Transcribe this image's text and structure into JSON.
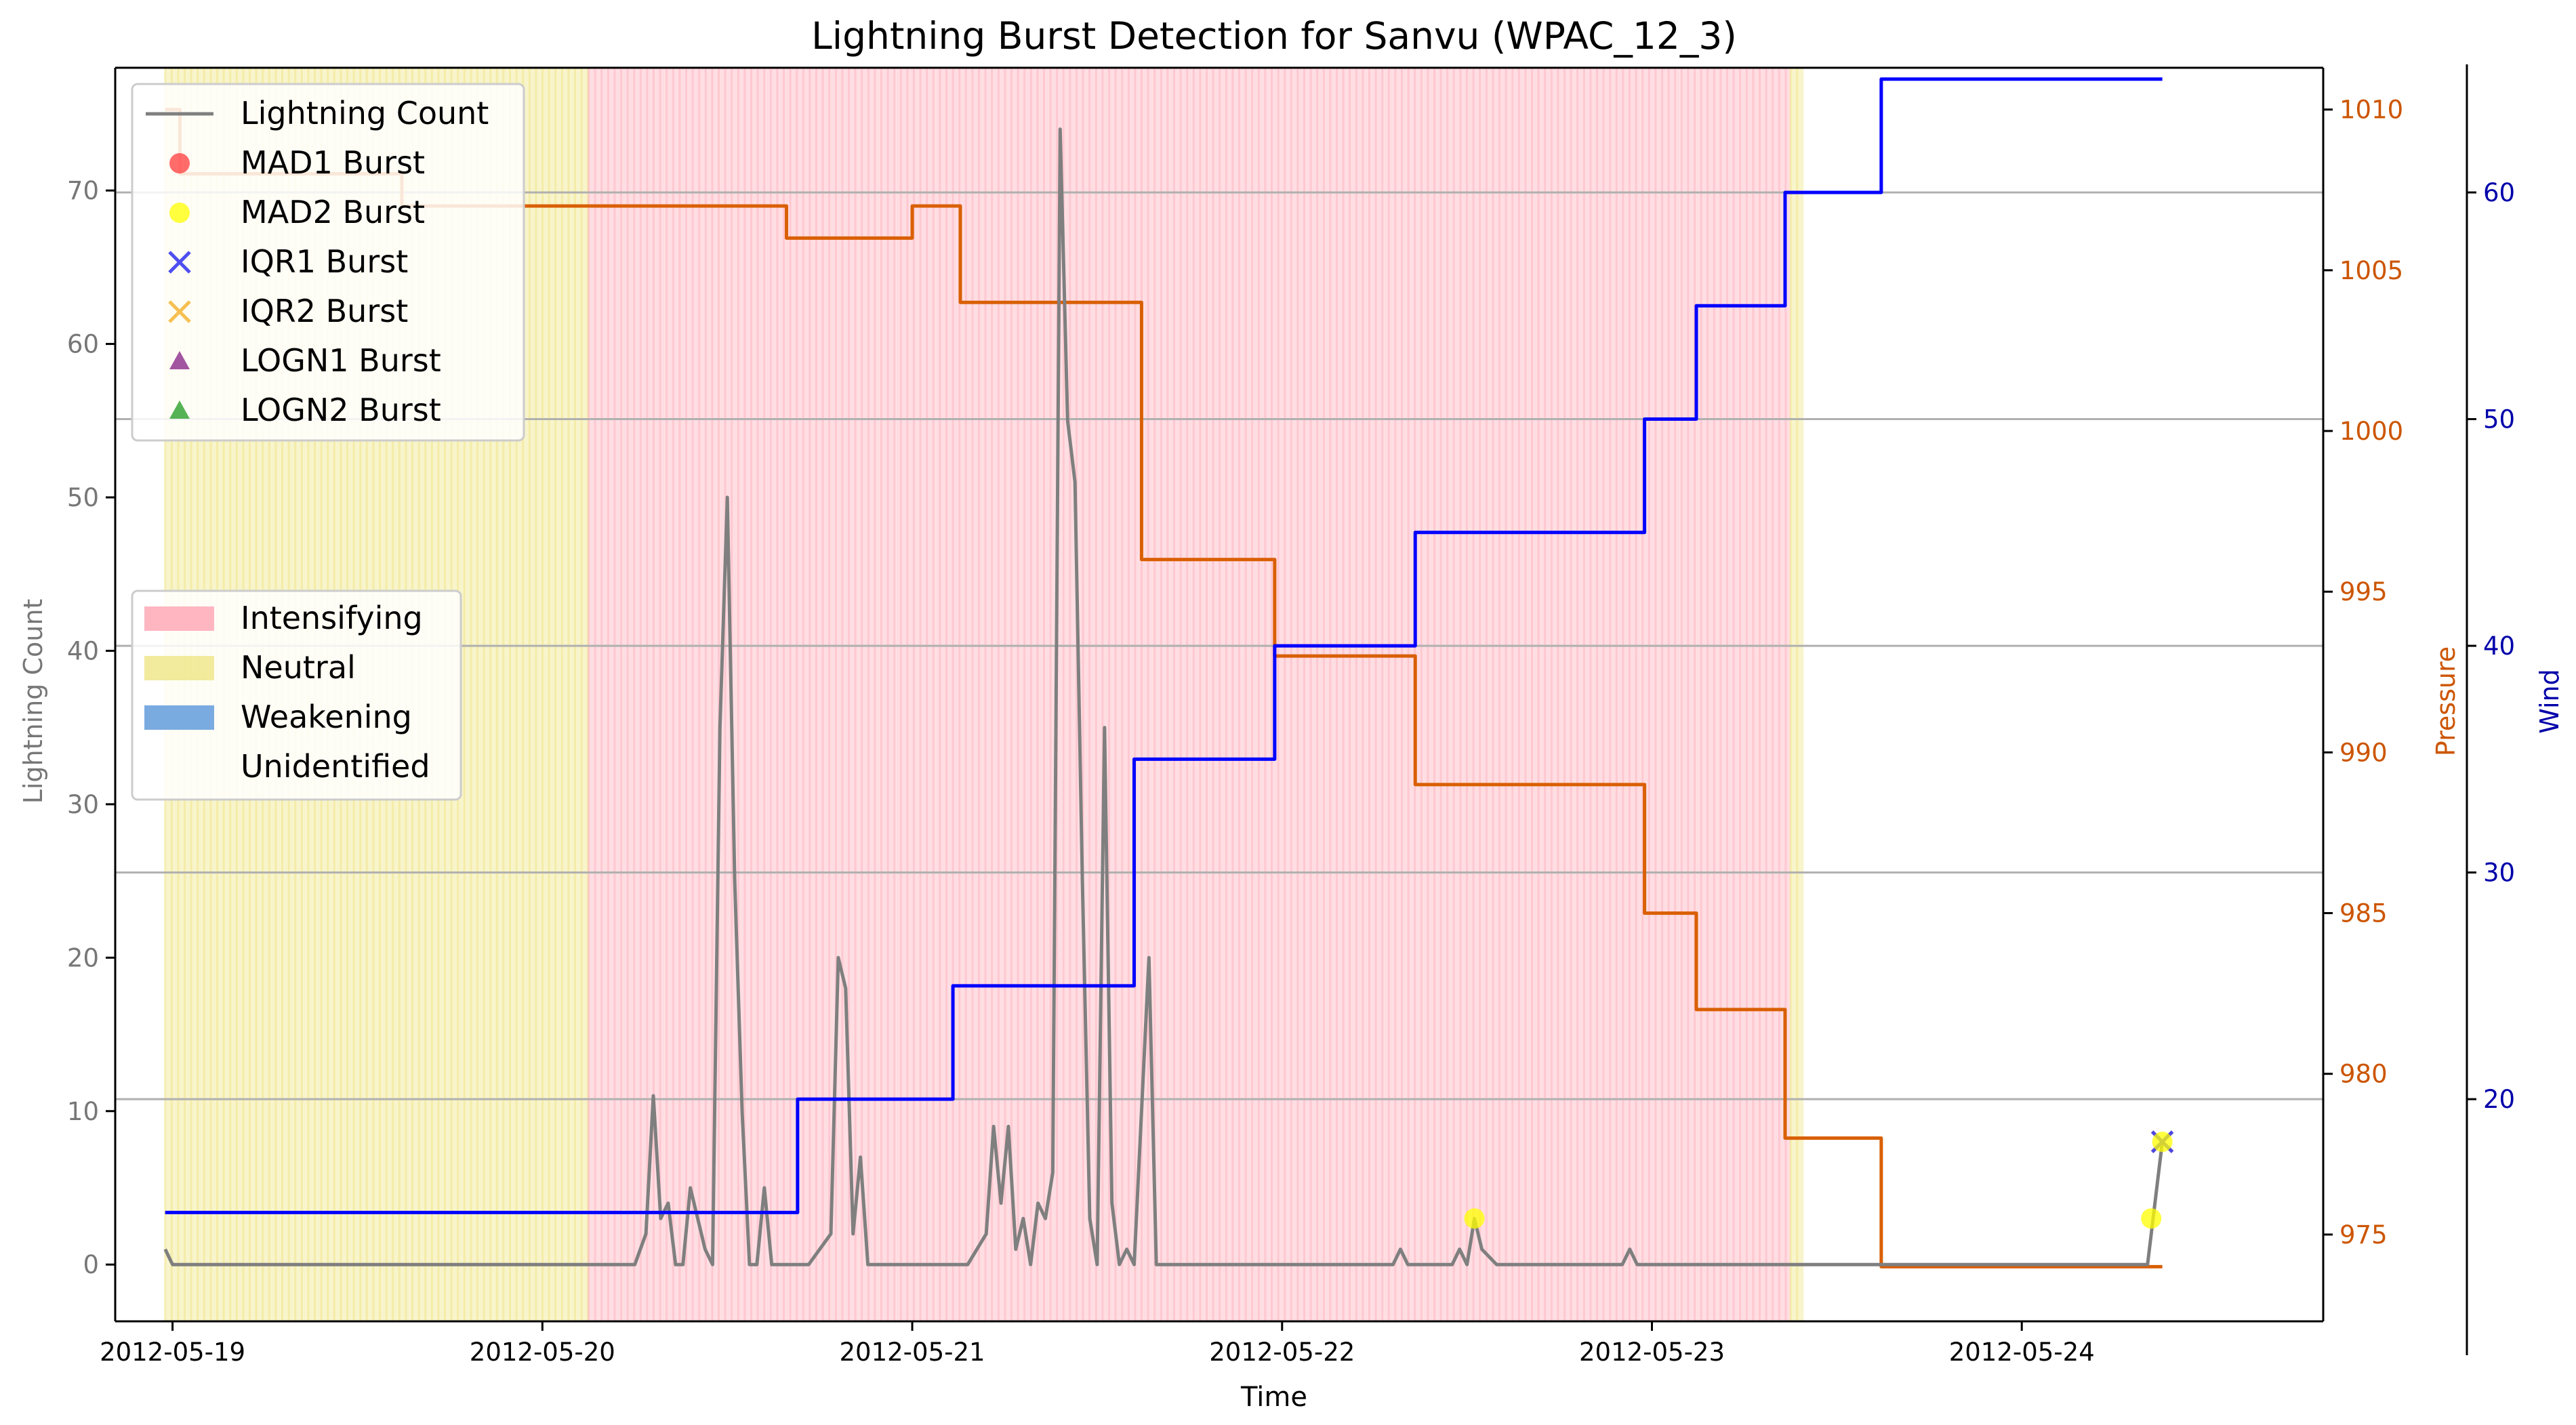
{
  "chart_data": {
    "type": "line",
    "title": "Lightning Burst Detection for Sanvu (WPAC_12_3)",
    "xlabel": "Time",
    "ylabel_left": "Lightning Count",
    "ylabel_pressure": "Pressure",
    "ylabel_wind": "Wind",
    "x_tick_labels": [
      "2012-05-19",
      "2012-05-20",
      "2012-05-21",
      "2012-05-22",
      "2012-05-23",
      "2012-05-24"
    ],
    "y_left_ticks": [
      0,
      10,
      20,
      30,
      40,
      50,
      60,
      70
    ],
    "y_pressure_ticks": [
      975,
      980,
      985,
      990,
      995,
      1000,
      1005,
      1010
    ],
    "y_wind_ticks": [
      20,
      30,
      40,
      50,
      60
    ],
    "ylim_left": [
      -3.7,
      78
    ],
    "ylim_pressure": [
      972.3,
      1011.3
    ],
    "ylim_wind": [
      10.2,
      65.5
    ],
    "xlim_days": [
      -0.155,
      5.815
    ],
    "grid": "horizontal lines on wind axis",
    "legend_markers_position": "top-left",
    "legend_phases_position": "center-left",
    "colors": {
      "lightning": "#7f7f7f",
      "pressure": "#d95f02",
      "wind": "#0000ff",
      "intensifying": "#ffb6c1",
      "neutral": "#f0e68c",
      "weakening": "#7aabe0",
      "mad1": "#ff3b3b",
      "mad2": "#ffff00",
      "iqr1": "#3b3bf0",
      "iqr2": "#f5b83d",
      "logn1": "#8b2a8b",
      "logn2": "#2ca02c",
      "tick_pressure": "#cc5500",
      "tick_wind": "#0000aa",
      "tick_left": "#777777"
    },
    "legend_markers": [
      {
        "key": "lightning",
        "label": "Lightning Count",
        "shape": "line"
      },
      {
        "key": "mad1",
        "label": "MAD1 Burst",
        "shape": "circle"
      },
      {
        "key": "mad2",
        "label": "MAD2 Burst",
        "shape": "circle"
      },
      {
        "key": "iqr1",
        "label": "IQR1 Burst",
        "shape": "x"
      },
      {
        "key": "iqr2",
        "label": "IQR2 Burst",
        "shape": "x"
      },
      {
        "key": "logn1",
        "label": "LOGN1 Burst",
        "shape": "triangle"
      },
      {
        "key": "logn2",
        "label": "LOGN2 Burst",
        "shape": "triangle"
      }
    ],
    "legend_phases": [
      {
        "key": "intensifying",
        "label": "Intensifying"
      },
      {
        "key": "neutral",
        "label": "Neutral"
      },
      {
        "key": "weakening",
        "label": "Weakening"
      },
      {
        "key": "unidentified",
        "label": "Unidentified"
      }
    ],
    "phases": [
      {
        "phase": "neutral",
        "start": -0.02,
        "end": 1.125
      },
      {
        "phase": "intensifying",
        "start": 1.125,
        "end": 4.375
      },
      {
        "phase": "neutral",
        "start": 4.375,
        "end": 4.41
      }
    ],
    "lightning": {
      "x": [
        -0.02,
        0,
        1.25,
        1.28,
        1.3,
        1.32,
        1.34,
        1.36,
        1.38,
        1.4,
        1.42,
        1.44,
        1.46,
        1.48,
        1.5,
        1.52,
        1.54,
        1.56,
        1.58,
        1.6,
        1.62,
        1.64,
        1.66,
        1.68,
        1.72,
        1.78,
        1.8,
        1.82,
        1.84,
        1.86,
        1.88,
        1.9,
        2.15,
        2.2,
        2.22,
        2.24,
        2.26,
        2.28,
        2.3,
        2.32,
        2.34,
        2.36,
        2.38,
        2.4,
        2.42,
        2.44,
        2.46,
        2.48,
        2.5,
        2.52,
        2.54,
        2.56,
        2.58,
        2.6,
        2.62,
        2.64,
        2.66,
        2.68,
        2.7,
        2.72,
        2.74,
        2.76,
        2.8,
        2.96,
        3.3,
        3.32,
        3.34,
        3.44,
        3.46,
        3.48,
        3.5,
        3.52,
        3.54,
        3.58,
        3.92,
        3.94,
        3.96,
        4.0,
        4.33,
        4.375,
        5.3,
        5.34,
        5.38
      ],
      "y": [
        1,
        0,
        0,
        2,
        11,
        3,
        4,
        0,
        0,
        5,
        3,
        1,
        0,
        35,
        50,
        25,
        10,
        0,
        0,
        5,
        0,
        0,
        0,
        0,
        0,
        2,
        20,
        18,
        2,
        7,
        0,
        0,
        0,
        2,
        9,
        4,
        9,
        1,
        3,
        0,
        4,
        3,
        6,
        74,
        55,
        51,
        25,
        3,
        0,
        35,
        4,
        0,
        1,
        0,
        10,
        20,
        0,
        0,
        0,
        0,
        0,
        0,
        0,
        0,
        0,
        1,
        0,
        0,
        0,
        1,
        0,
        3,
        1,
        0,
        0,
        1,
        0,
        0,
        0,
        0,
        0,
        0,
        8
      ]
    },
    "pressure_steps": [
      {
        "x": -0.02,
        "value": 1010
      },
      {
        "x": 0.02,
        "value": 1008
      },
      {
        "x": 0.62,
        "value": 1007
      },
      {
        "x": 1.66,
        "value": 1006
      },
      {
        "x": 2.0,
        "value": 1007
      },
      {
        "x": 2.13,
        "value": 1004
      },
      {
        "x": 2.62,
        "value": 996
      },
      {
        "x": 2.98,
        "value": 993
      },
      {
        "x": 3.36,
        "value": 989
      },
      {
        "x": 3.98,
        "value": 985
      },
      {
        "x": 4.12,
        "value": 982
      },
      {
        "x": 4.36,
        "value": 978
      },
      {
        "x": 4.62,
        "value": 974
      }
    ],
    "pressure_end_x": 5.38,
    "wind_steps": [
      {
        "x": -0.02,
        "value": 15
      },
      {
        "x": 1.69,
        "value": 20
      },
      {
        "x": 2.11,
        "value": 25
      },
      {
        "x": 2.6,
        "value": 35
      },
      {
        "x": 2.98,
        "value": 40
      },
      {
        "x": 3.36,
        "value": 45
      },
      {
        "x": 3.98,
        "value": 50
      },
      {
        "x": 4.12,
        "value": 55
      },
      {
        "x": 4.36,
        "value": 60
      },
      {
        "x": 4.62,
        "value": 65
      }
    ],
    "wind_end_x": 5.38,
    "bursts": [
      {
        "key": "mad2",
        "shape": "circle",
        "x": 3.52,
        "y": 3
      },
      {
        "key": "mad2",
        "shape": "circle",
        "x": 5.35,
        "y": 3
      },
      {
        "key": "iqr2",
        "shape": "x",
        "x": 5.38,
        "y": 8
      },
      {
        "key": "iqr1",
        "shape": "x",
        "x": 5.38,
        "y": 8
      },
      {
        "key": "mad2",
        "shape": "circle",
        "x": 5.38,
        "y": 8
      }
    ]
  }
}
